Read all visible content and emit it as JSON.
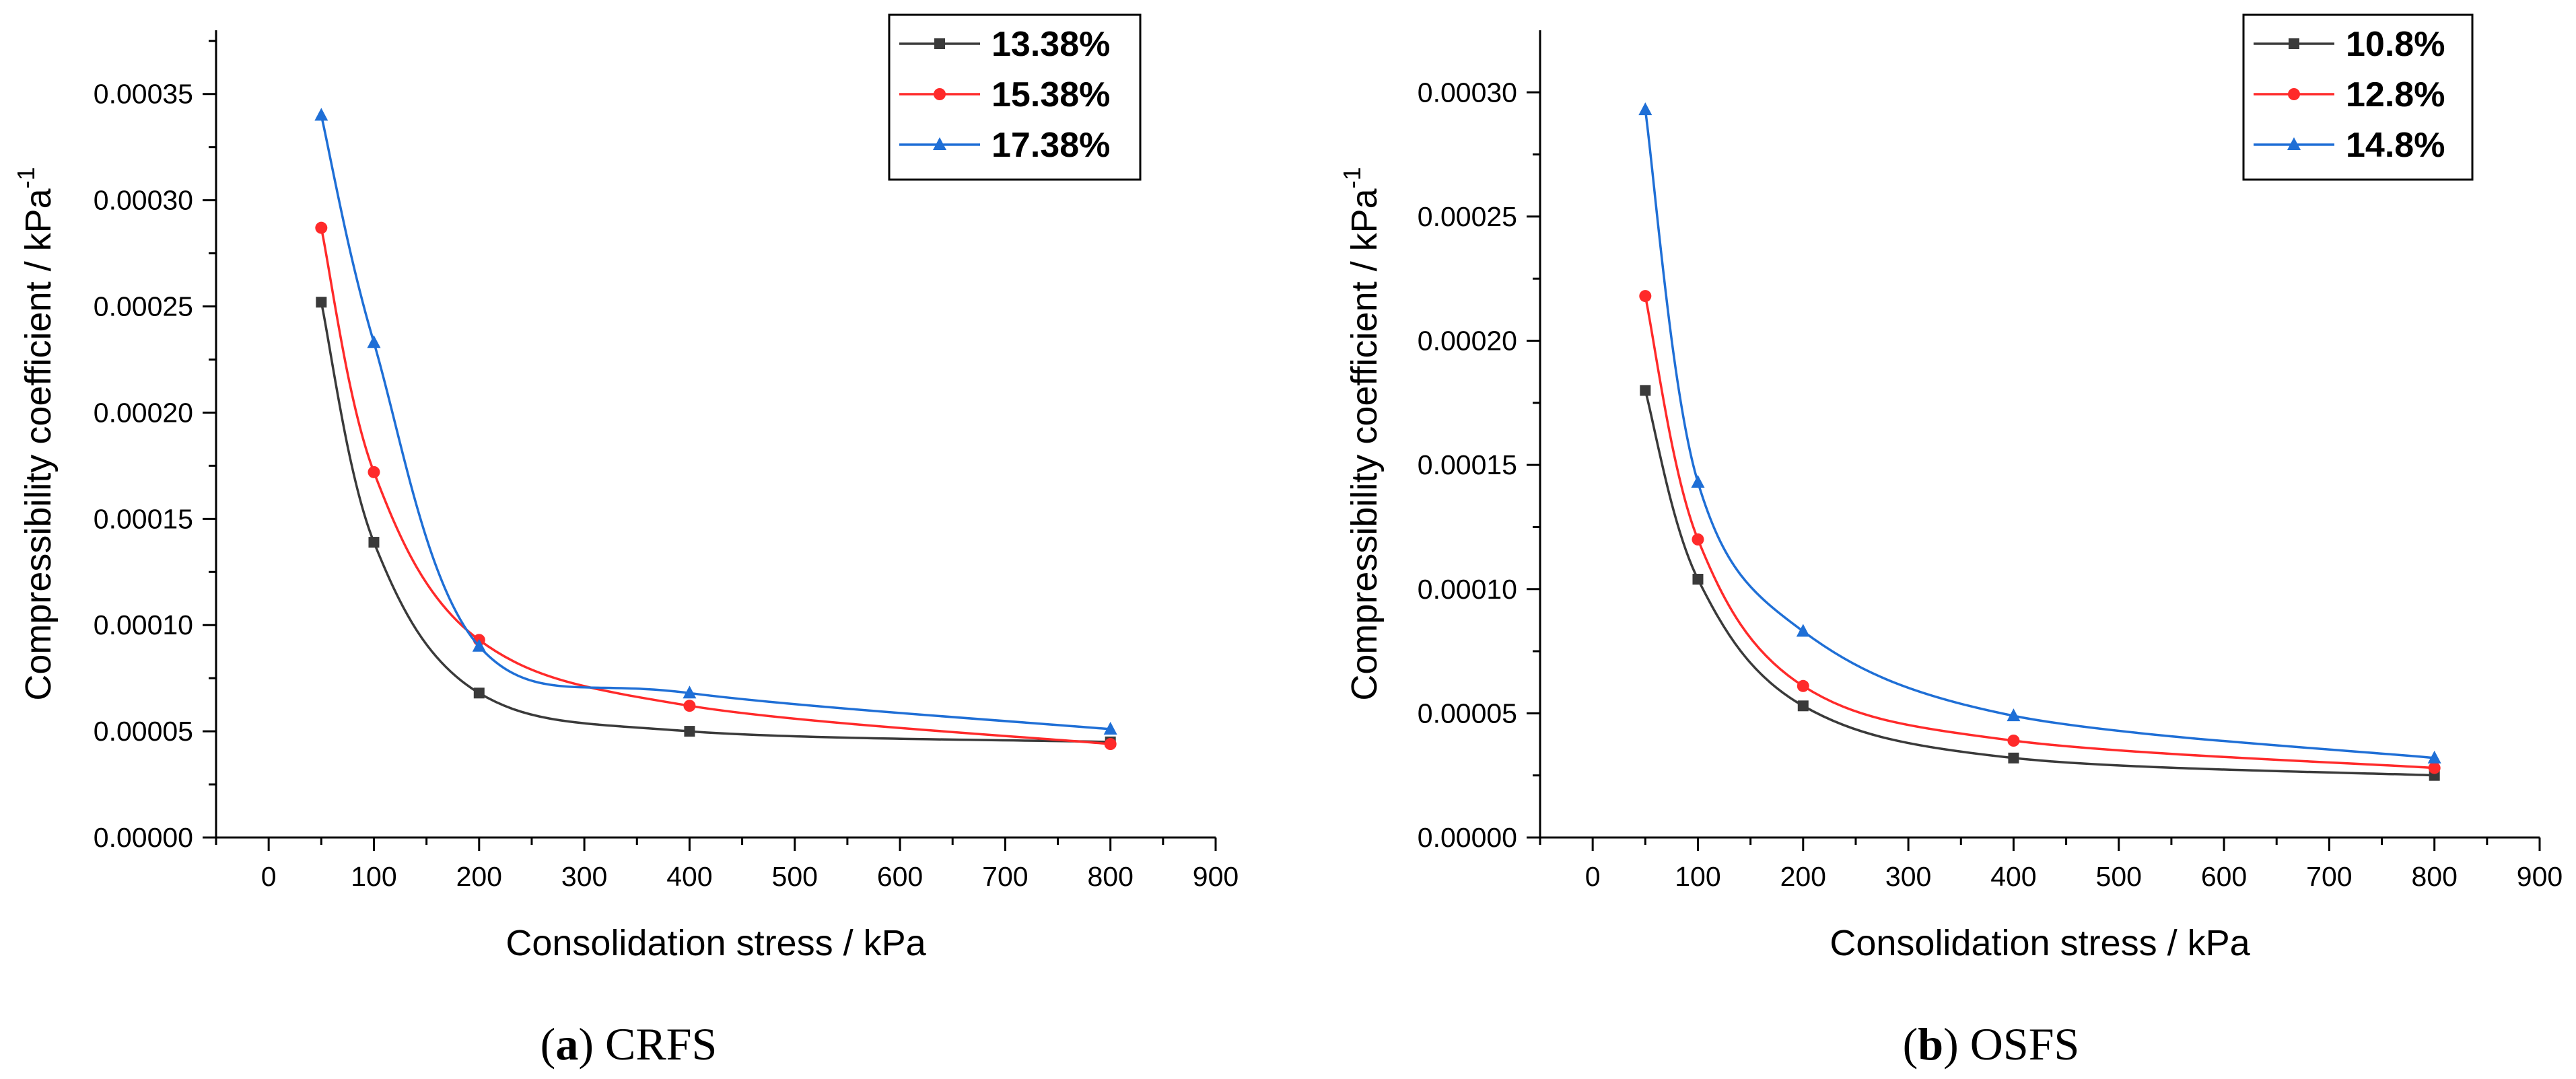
{
  "chart_data": [
    {
      "type": "line",
      "panel_letter": "a",
      "caption": "CRFS",
      "xlabel": "Consolidation stress / kPa",
      "ylabel_main": "Compressibility coefficient / kPa",
      "ylabel_sup": "-1",
      "xlim": [
        -50,
        900
      ],
      "ylim": [
        0,
        0.00038
      ],
      "xticks": [
        "0",
        "100",
        "200",
        "300",
        "400",
        "500",
        "600",
        "700",
        "800",
        "900"
      ],
      "yticks": [
        "0.00000",
        "0.00005",
        "0.00010",
        "0.00015",
        "0.00020",
        "0.00025",
        "0.00030",
        "0.00035"
      ],
      "x": [
        50,
        100,
        200,
        400,
        800
      ],
      "series": [
        {
          "name": "13.38%",
          "color": "#3a3a3a",
          "marker": "square",
          "values": [
            0.000252,
            0.000139,
            6.8e-05,
            5e-05,
            4.5e-05
          ]
        },
        {
          "name": "15.38%",
          "color": "#ff2a2a",
          "marker": "circle",
          "values": [
            0.000287,
            0.000172,
            9.3e-05,
            6.2e-05,
            4.4e-05
          ]
        },
        {
          "name": "17.38%",
          "color": "#1f6fd6",
          "marker": "triangle",
          "values": [
            0.00034,
            0.000233,
            9e-05,
            6.8e-05,
            5.1e-05
          ]
        }
      ]
    },
    {
      "type": "line",
      "panel_letter": "b",
      "caption": "OSFS",
      "xlabel": "Consolidation stress / kPa",
      "ylabel_main": "Compressibility coefficient / kPa",
      "ylabel_sup": "-1",
      "xlim": [
        -50,
        900
      ],
      "ylim": [
        0,
        0.000325
      ],
      "xticks": [
        "0",
        "100",
        "200",
        "300",
        "400",
        "500",
        "600",
        "700",
        "800",
        "900"
      ],
      "yticks": [
        "0.00000",
        "0.00005",
        "0.00010",
        "0.00015",
        "0.00020",
        "0.00025",
        "0.00030"
      ],
      "x": [
        50,
        100,
        200,
        400,
        800
      ],
      "series": [
        {
          "name": "10.8%",
          "color": "#3a3a3a",
          "marker": "square",
          "values": [
            0.00018,
            0.000104,
            5.3e-05,
            3.2e-05,
            2.5e-05
          ]
        },
        {
          "name": "12.8%",
          "color": "#ff2a2a",
          "marker": "circle",
          "values": [
            0.000218,
            0.00012,
            6.1e-05,
            3.9e-05,
            2.8e-05
          ]
        },
        {
          "name": "14.8%",
          "color": "#1f6fd6",
          "marker": "triangle",
          "values": [
            0.000293,
            0.000143,
            8.3e-05,
            4.9e-05,
            3.2e-05
          ]
        }
      ]
    }
  ]
}
